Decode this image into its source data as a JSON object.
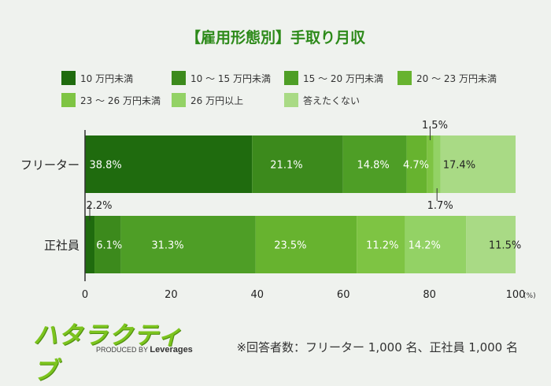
{
  "chart_data": {
    "type": "bar",
    "orientation": "horizontal",
    "stacked": true,
    "title": "【雇用形態別】手取り月収",
    "categories": [
      "フリーター",
      "正社員"
    ],
    "series": [
      {
        "name": "10 万円未満",
        "color": "#1f6b0e",
        "values": [
          38.8,
          2.2
        ],
        "labels": [
          "38.8%",
          "2.2%"
        ]
      },
      {
        "name": "10 〜 15 万円未満",
        "color": "#3c8a1c",
        "values": [
          21.1,
          6.1
        ],
        "labels": [
          "21.1%",
          "6.1%"
        ]
      },
      {
        "name": "15 〜 20 万円未満",
        "color": "#4e9e26",
        "values": [
          14.8,
          31.3
        ],
        "labels": [
          "14.8%",
          "31.3%"
        ]
      },
      {
        "name": "20 〜 23 万円未満",
        "color": "#67b32f",
        "values": [
          4.7,
          23.5
        ],
        "labels": [
          "4.7%",
          "23.5%"
        ]
      },
      {
        "name": "23 〜 26 万円未満",
        "color": "#7ec443",
        "values": [
          1.5,
          11.2
        ],
        "labels": [
          "1.5%",
          "11.2%"
        ]
      },
      {
        "name": "26 万円以上",
        "color": "#93d265",
        "values": [
          1.7,
          14.2
        ],
        "labels": [
          "1.7%",
          "14.2%"
        ]
      },
      {
        "name": "答えたくない",
        "color": "#a9da85",
        "values": [
          17.4,
          11.5
        ],
        "labels": [
          "17.4%",
          "11.5%"
        ]
      }
    ],
    "xlim": [
      0,
      100
    ],
    "x_ticks": [
      "0",
      "20",
      "40",
      "60",
      "80",
      "100"
    ],
    "x_unit": "(%)",
    "legend_position": "top",
    "grid": false
  },
  "branding": {
    "logo_text": "ハタラクティブ",
    "produced_by": "PRODUCED BY",
    "company": "Leverages"
  },
  "footnote": "※回答者数：フリーター 1,000 名、正社員 1,000 名"
}
